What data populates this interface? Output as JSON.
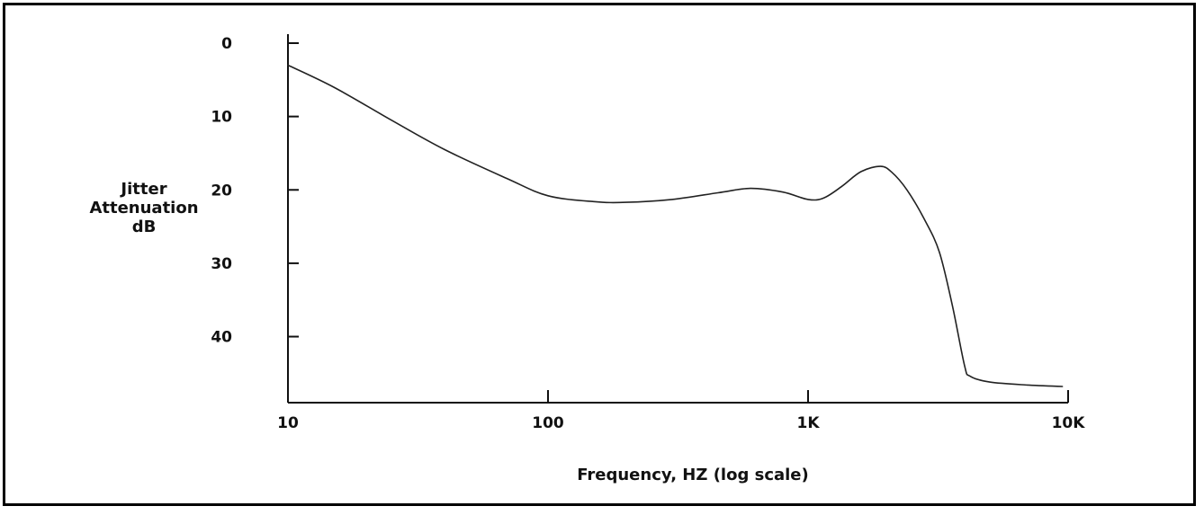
{
  "chart_data": {
    "type": "line",
    "title": "",
    "xlabel": "Frequency, HZ (log scale)",
    "ylabel_lines": [
      "Jitter",
      "Attenuation",
      "dB"
    ],
    "x_scale": "log",
    "y_inverted": true,
    "xlim": [
      10,
      10000
    ],
    "ylim": [
      0,
      49
    ],
    "x_ticks": [
      {
        "value": 10,
        "label": "10"
      },
      {
        "value": 100,
        "label": "100"
      },
      {
        "value": 1000,
        "label": "1K"
      },
      {
        "value": 10000,
        "label": "10K"
      }
    ],
    "y_ticks": [
      {
        "value": 0,
        "label": "0"
      },
      {
        "value": 10,
        "label": "10"
      },
      {
        "value": 20,
        "label": "20"
      },
      {
        "value": 30,
        "label": "30"
      },
      {
        "value": 40,
        "label": "40"
      }
    ],
    "grid": false,
    "series": [
      {
        "color": "#222222",
        "points": [
          [
            10,
            3
          ],
          [
            15,
            6
          ],
          [
            25,
            10.5
          ],
          [
            40,
            14.5
          ],
          [
            70,
            18.5
          ],
          [
            100,
            20.8
          ],
          [
            150,
            21.6
          ],
          [
            200,
            21.7
          ],
          [
            300,
            21.3
          ],
          [
            450,
            20.4
          ],
          [
            600,
            19.8
          ],
          [
            800,
            20.3
          ],
          [
            1000,
            21.3
          ],
          [
            1150,
            21.1
          ],
          [
            1350,
            19.5
          ],
          [
            1600,
            17.5
          ],
          [
            1900,
            16.8
          ],
          [
            2100,
            17.6
          ],
          [
            2400,
            20
          ],
          [
            2800,
            24
          ],
          [
            3200,
            28.5
          ],
          [
            3600,
            36
          ],
          [
            4000,
            44
          ],
          [
            4200,
            45.4
          ],
          [
            5000,
            46.2
          ],
          [
            7000,
            46.6
          ],
          [
            9500,
            46.8
          ]
        ]
      }
    ]
  }
}
